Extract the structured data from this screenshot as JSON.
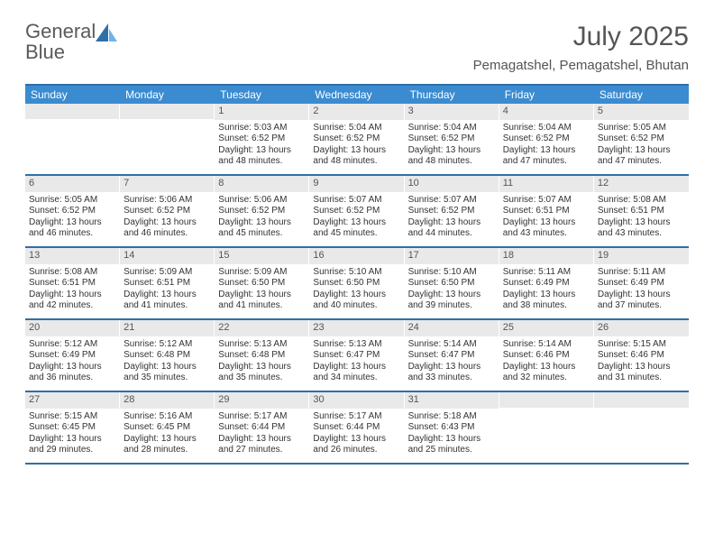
{
  "brand": {
    "part1": "General",
    "part2": "Blue"
  },
  "header": {
    "month_title": "July 2025",
    "location": "Pemagatshel, Pemagatshel, Bhutan"
  },
  "colors": {
    "header_row_bg": "#3b8bd0",
    "header_row_text": "#ffffff",
    "rule": "#2f6fa8",
    "daynum_bg": "#e9e9e9",
    "text": "#333333",
    "logo_gray": "#5a5a5a",
    "logo_blue": "#3a7fc4"
  },
  "dow": [
    "Sunday",
    "Monday",
    "Tuesday",
    "Wednesday",
    "Thursday",
    "Friday",
    "Saturday"
  ],
  "weeks": [
    [
      {
        "n": "",
        "lines": []
      },
      {
        "n": "",
        "lines": []
      },
      {
        "n": "1",
        "lines": [
          "Sunrise: 5:03 AM",
          "Sunset: 6:52 PM",
          "Daylight: 13 hours and 48 minutes."
        ]
      },
      {
        "n": "2",
        "lines": [
          "Sunrise: 5:04 AM",
          "Sunset: 6:52 PM",
          "Daylight: 13 hours and 48 minutes."
        ]
      },
      {
        "n": "3",
        "lines": [
          "Sunrise: 5:04 AM",
          "Sunset: 6:52 PM",
          "Daylight: 13 hours and 48 minutes."
        ]
      },
      {
        "n": "4",
        "lines": [
          "Sunrise: 5:04 AM",
          "Sunset: 6:52 PM",
          "Daylight: 13 hours and 47 minutes."
        ]
      },
      {
        "n": "5",
        "lines": [
          "Sunrise: 5:05 AM",
          "Sunset: 6:52 PM",
          "Daylight: 13 hours and 47 minutes."
        ]
      }
    ],
    [
      {
        "n": "6",
        "lines": [
          "Sunrise: 5:05 AM",
          "Sunset: 6:52 PM",
          "Daylight: 13 hours and 46 minutes."
        ]
      },
      {
        "n": "7",
        "lines": [
          "Sunrise: 5:06 AM",
          "Sunset: 6:52 PM",
          "Daylight: 13 hours and 46 minutes."
        ]
      },
      {
        "n": "8",
        "lines": [
          "Sunrise: 5:06 AM",
          "Sunset: 6:52 PM",
          "Daylight: 13 hours and 45 minutes."
        ]
      },
      {
        "n": "9",
        "lines": [
          "Sunrise: 5:07 AM",
          "Sunset: 6:52 PM",
          "Daylight: 13 hours and 45 minutes."
        ]
      },
      {
        "n": "10",
        "lines": [
          "Sunrise: 5:07 AM",
          "Sunset: 6:52 PM",
          "Daylight: 13 hours and 44 minutes."
        ]
      },
      {
        "n": "11",
        "lines": [
          "Sunrise: 5:07 AM",
          "Sunset: 6:51 PM",
          "Daylight: 13 hours and 43 minutes."
        ]
      },
      {
        "n": "12",
        "lines": [
          "Sunrise: 5:08 AM",
          "Sunset: 6:51 PM",
          "Daylight: 13 hours and 43 minutes."
        ]
      }
    ],
    [
      {
        "n": "13",
        "lines": [
          "Sunrise: 5:08 AM",
          "Sunset: 6:51 PM",
          "Daylight: 13 hours and 42 minutes."
        ]
      },
      {
        "n": "14",
        "lines": [
          "Sunrise: 5:09 AM",
          "Sunset: 6:51 PM",
          "Daylight: 13 hours and 41 minutes."
        ]
      },
      {
        "n": "15",
        "lines": [
          "Sunrise: 5:09 AM",
          "Sunset: 6:50 PM",
          "Daylight: 13 hours and 41 minutes."
        ]
      },
      {
        "n": "16",
        "lines": [
          "Sunrise: 5:10 AM",
          "Sunset: 6:50 PM",
          "Daylight: 13 hours and 40 minutes."
        ]
      },
      {
        "n": "17",
        "lines": [
          "Sunrise: 5:10 AM",
          "Sunset: 6:50 PM",
          "Daylight: 13 hours and 39 minutes."
        ]
      },
      {
        "n": "18",
        "lines": [
          "Sunrise: 5:11 AM",
          "Sunset: 6:49 PM",
          "Daylight: 13 hours and 38 minutes."
        ]
      },
      {
        "n": "19",
        "lines": [
          "Sunrise: 5:11 AM",
          "Sunset: 6:49 PM",
          "Daylight: 13 hours and 37 minutes."
        ]
      }
    ],
    [
      {
        "n": "20",
        "lines": [
          "Sunrise: 5:12 AM",
          "Sunset: 6:49 PM",
          "Daylight: 13 hours and 36 minutes."
        ]
      },
      {
        "n": "21",
        "lines": [
          "Sunrise: 5:12 AM",
          "Sunset: 6:48 PM",
          "Daylight: 13 hours and 35 minutes."
        ]
      },
      {
        "n": "22",
        "lines": [
          "Sunrise: 5:13 AM",
          "Sunset: 6:48 PM",
          "Daylight: 13 hours and 35 minutes."
        ]
      },
      {
        "n": "23",
        "lines": [
          "Sunrise: 5:13 AM",
          "Sunset: 6:47 PM",
          "Daylight: 13 hours and 34 minutes."
        ]
      },
      {
        "n": "24",
        "lines": [
          "Sunrise: 5:14 AM",
          "Sunset: 6:47 PM",
          "Daylight: 13 hours and 33 minutes."
        ]
      },
      {
        "n": "25",
        "lines": [
          "Sunrise: 5:14 AM",
          "Sunset: 6:46 PM",
          "Daylight: 13 hours and 32 minutes."
        ]
      },
      {
        "n": "26",
        "lines": [
          "Sunrise: 5:15 AM",
          "Sunset: 6:46 PM",
          "Daylight: 13 hours and 31 minutes."
        ]
      }
    ],
    [
      {
        "n": "27",
        "lines": [
          "Sunrise: 5:15 AM",
          "Sunset: 6:45 PM",
          "Daylight: 13 hours and 29 minutes."
        ]
      },
      {
        "n": "28",
        "lines": [
          "Sunrise: 5:16 AM",
          "Sunset: 6:45 PM",
          "Daylight: 13 hours and 28 minutes."
        ]
      },
      {
        "n": "29",
        "lines": [
          "Sunrise: 5:17 AM",
          "Sunset: 6:44 PM",
          "Daylight: 13 hours and 27 minutes."
        ]
      },
      {
        "n": "30",
        "lines": [
          "Sunrise: 5:17 AM",
          "Sunset: 6:44 PM",
          "Daylight: 13 hours and 26 minutes."
        ]
      },
      {
        "n": "31",
        "lines": [
          "Sunrise: 5:18 AM",
          "Sunset: 6:43 PM",
          "Daylight: 13 hours and 25 minutes."
        ]
      },
      {
        "n": "",
        "lines": []
      },
      {
        "n": "",
        "lines": []
      }
    ]
  ]
}
